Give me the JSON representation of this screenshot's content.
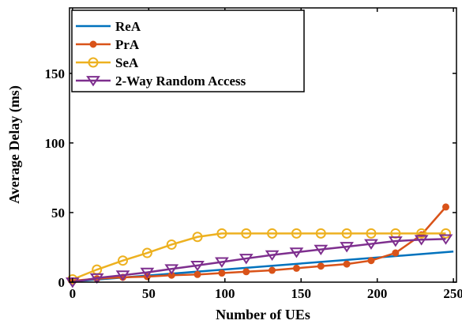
{
  "chart_data": {
    "type": "line",
    "xlabel": "Number of UEs",
    "ylabel": "Average Delay (ms)",
    "xlim": [
      -2,
      252
    ],
    "ylim": [
      0,
      197
    ],
    "xticks": [
      0,
      50,
      100,
      150,
      200,
      250
    ],
    "yticks": [
      0,
      50,
      100,
      150
    ],
    "grid": false,
    "legend_position": "top-left",
    "series": [
      {
        "name": "ReA",
        "color": "#0072BD",
        "marker": "none",
        "x": [
          0,
          250
        ],
        "y": [
          0.5,
          22
        ]
      },
      {
        "name": "PrA",
        "color": "#D95319",
        "marker": "circle-filled",
        "x": [
          0,
          16,
          33,
          49,
          65,
          82,
          98,
          114,
          131,
          147,
          163,
          180,
          196,
          212,
          229,
          245
        ],
        "y": [
          1,
          2.5,
          3.5,
          4,
          5,
          5.5,
          6.5,
          7.5,
          8.5,
          10,
          11.5,
          13,
          15.5,
          21,
          34,
          54
        ]
      },
      {
        "name": "SeA",
        "color": "#EDB120",
        "marker": "circle-open",
        "x": [
          0,
          16,
          33,
          49,
          65,
          82,
          98,
          114,
          131,
          147,
          163,
          180,
          196,
          212,
          229,
          245
        ],
        "y": [
          2,
          9,
          15.5,
          21,
          27,
          32.5,
          35,
          35,
          35,
          35,
          35,
          35,
          35,
          35,
          35,
          35
        ]
      },
      {
        "name": "2-Way Random Access",
        "color": "#7E2F8E",
        "marker": "triangle-down",
        "x": [
          0,
          16,
          33,
          49,
          65,
          82,
          98,
          114,
          131,
          147,
          163,
          180,
          196,
          212,
          229,
          245
        ],
        "y": [
          0,
          3,
          5,
          7,
          9.5,
          12,
          14.5,
          17,
          19.5,
          21.5,
          23.5,
          25.5,
          27.5,
          29.5,
          30.5,
          31
        ]
      }
    ]
  }
}
